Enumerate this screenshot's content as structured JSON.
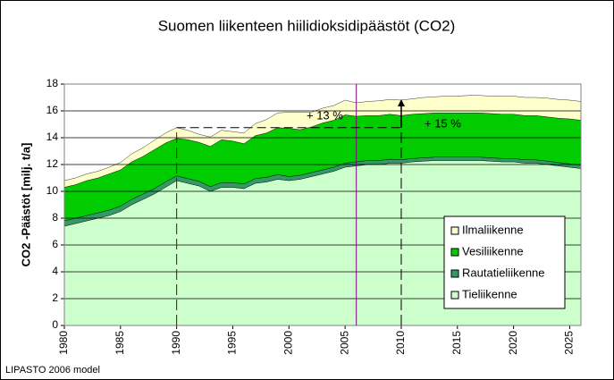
{
  "chart_data": {
    "type": "stacked_area",
    "title": "Suomen liikenteen hiilidioksidipäästöt (CO2)",
    "y_label": "CO2 -Päästöt [milj. t/a]",
    "source": "LIPASTO 2006 model",
    "annotations": [
      "+ 13 %",
      "+ 15 %"
    ],
    "reference_years": [
      1990,
      2006,
      2010
    ],
    "xlim": [
      1980,
      2026
    ],
    "xticks": [
      1980,
      1985,
      1990,
      1995,
      2000,
      2005,
      2010,
      2015,
      2020,
      2025
    ],
    "ylim": [
      0,
      18
    ],
    "yticks": [
      0,
      2,
      4,
      6,
      8,
      10,
      12,
      14,
      16,
      18
    ],
    "grid": true,
    "legend": "right",
    "x": [
      1980,
      1981,
      1982,
      1983,
      1984,
      1985,
      1986,
      1987,
      1988,
      1989,
      1990,
      1991,
      1992,
      1993,
      1994,
      1995,
      1996,
      1997,
      1998,
      1999,
      2000,
      2001,
      2002,
      2003,
      2004,
      2005,
      2006,
      2007,
      2008,
      2009,
      2010,
      2011,
      2012,
      2013,
      2014,
      2015,
      2016,
      2017,
      2018,
      2019,
      2020,
      2021,
      2022,
      2023,
      2024,
      2025,
      2026
    ],
    "series": [
      {
        "name": "Tieliikenne",
        "color": "#ccffcc",
        "values": [
          7.4,
          7.6,
          7.8,
          8.0,
          8.2,
          8.5,
          9.0,
          9.4,
          9.8,
          10.3,
          10.8,
          10.6,
          10.4,
          10.0,
          10.3,
          10.3,
          10.2,
          10.6,
          10.7,
          10.9,
          10.8,
          10.9,
          11.1,
          11.3,
          11.5,
          11.8,
          11.9,
          12.0,
          12.0,
          12.1,
          12.1,
          12.2,
          12.25,
          12.3,
          12.3,
          12.3,
          12.3,
          12.3,
          12.25,
          12.2,
          12.2,
          12.1,
          12.1,
          12.0,
          11.9,
          11.8,
          11.7
        ]
      },
      {
        "name": "Rautatieliikenne",
        "color": "#339966",
        "values": [
          0.4,
          0.4,
          0.4,
          0.4,
          0.4,
          0.4,
          0.4,
          0.4,
          0.4,
          0.4,
          0.35,
          0.35,
          0.35,
          0.35,
          0.35,
          0.35,
          0.35,
          0.35,
          0.35,
          0.35,
          0.3,
          0.3,
          0.3,
          0.3,
          0.3,
          0.3,
          0.3,
          0.3,
          0.3,
          0.3,
          0.25,
          0.25,
          0.25,
          0.25,
          0.25,
          0.25,
          0.25,
          0.25,
          0.25,
          0.25,
          0.25,
          0.25,
          0.25,
          0.25,
          0.25,
          0.25,
          0.25
        ]
      },
      {
        "name": "Vesiliikenne",
        "color": "#00cc00",
        "values": [
          2.5,
          2.5,
          2.6,
          2.6,
          2.7,
          2.7,
          2.8,
          2.8,
          2.9,
          2.9,
          2.8,
          2.9,
          2.9,
          3.0,
          3.2,
          3.1,
          3.0,
          3.2,
          3.3,
          3.5,
          3.6,
          3.4,
          3.4,
          3.5,
          3.5,
          3.6,
          3.4,
          3.35,
          3.35,
          3.35,
          3.3,
          3.3,
          3.3,
          3.3,
          3.3,
          3.3,
          3.3,
          3.3,
          3.3,
          3.3,
          3.3,
          3.3,
          3.3,
          3.3,
          3.3,
          3.35,
          3.35
        ]
      },
      {
        "name": "Ilmaliikenne",
        "color": "#ffffcc",
        "values": [
          0.5,
          0.5,
          0.5,
          0.5,
          0.5,
          0.55,
          0.6,
          0.65,
          0.7,
          0.75,
          0.8,
          0.7,
          0.6,
          0.7,
          0.7,
          0.7,
          0.8,
          0.9,
          1.0,
          1.1,
          1.2,
          1.3,
          1.1,
          1.1,
          1.1,
          1.1,
          1.0,
          1.05,
          1.1,
          1.1,
          1.15,
          1.15,
          1.2,
          1.2,
          1.25,
          1.25,
          1.3,
          1.3,
          1.3,
          1.35,
          1.35,
          1.35,
          1.35,
          1.4,
          1.4,
          1.4,
          1.4
        ]
      }
    ]
  }
}
